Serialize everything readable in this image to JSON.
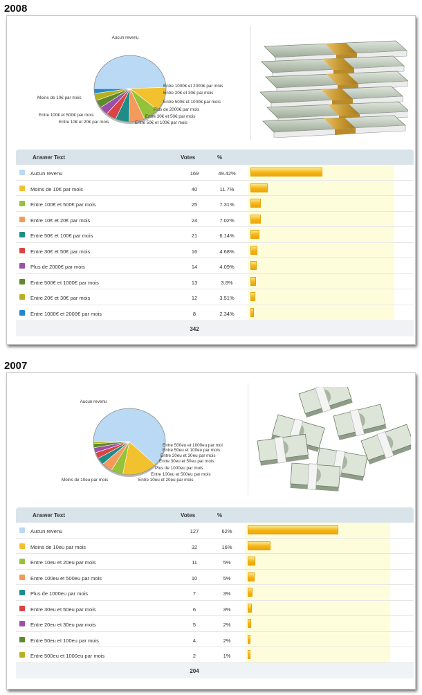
{
  "panels": [
    {
      "year": "2008",
      "columns": {
        "answer": "Answer Text",
        "votes": "Votes",
        "percent": "%"
      },
      "total": "342",
      "rows": [
        {
          "label": "Aucun revenu",
          "votes": "169",
          "percent": "49.42%",
          "color": "#b9d9f5"
        },
        {
          "label": "Moins de 10€ par mois",
          "votes": "40",
          "percent": "11.7%",
          "color": "#f2c12e"
        },
        {
          "label": "Entre 100€ et 500€ par mois",
          "votes": "25",
          "percent": "7.31%",
          "color": "#96c23a"
        },
        {
          "label": "Entre 10€ et 20€ par mois",
          "votes": "24",
          "percent": "7.02%",
          "color": "#f49a5c"
        },
        {
          "label": "Entre 50€ et 100€ par mois",
          "votes": "21",
          "percent": "6.14%",
          "color": "#1e8d8a"
        },
        {
          "label": "Entre 30€ et 50€ par mois",
          "votes": "16",
          "percent": "4.68%",
          "color": "#d94545"
        },
        {
          "label": "Plus de 2000€ par mois",
          "votes": "14",
          "percent": "4.09%",
          "color": "#9c4fa8"
        },
        {
          "label": "Entre 500€ et 1000€ par mois",
          "votes": "13",
          "percent": "3.8%",
          "color": "#5e8a2b"
        },
        {
          "label": "Entre 20€ et 30€ par mois",
          "votes": "12",
          "percent": "3.51%",
          "color": "#b7b022"
        },
        {
          "label": "Entre 1000€ et 2000€ par mois",
          "votes": "8",
          "percent": "2.34%",
          "color": "#2488d1"
        }
      ],
      "pie_labels": [
        "Aucun revenu",
        "Moins de 10€ par mois",
        "Entre 100€ et 500€ par mois",
        "Entre 10€ et 20€ par mois",
        "Entre 1000€ et 2000€ par mois",
        "Entre 20€ et 30€ par mois",
        "Entre 500€ et 1000€ par mois",
        "Plus de 2000€ par mois",
        "Entre 30€ et 50€ par mois",
        "Entre 50€ et 100€ par mois"
      ]
    },
    {
      "year": "2007",
      "columns": {
        "answer": "Answer Text",
        "votes": "Votes",
        "percent": "%"
      },
      "total": "204",
      "rows": [
        {
          "label": "Aucun revenu",
          "votes": "127",
          "percent": "62%",
          "color": "#b9d9f5"
        },
        {
          "label": "Moins de 10eu par mois",
          "votes": "32",
          "percent": "16%",
          "color": "#f2c12e"
        },
        {
          "label": "Entre 10eu et 20eu par mois",
          "votes": "11",
          "percent": "5%",
          "color": "#96c23a"
        },
        {
          "label": "Entre 100eu et 500eu par mois",
          "votes": "10",
          "percent": "5%",
          "color": "#f49a5c"
        },
        {
          "label": "Plus de 1000eu par mois",
          "votes": "7",
          "percent": "3%",
          "color": "#1e8d8a"
        },
        {
          "label": "Entre 30eu et 50eu par mois",
          "votes": "6",
          "percent": "3%",
          "color": "#d94545"
        },
        {
          "label": "Entre 20eu et 30eu par mois",
          "votes": "5",
          "percent": "2%",
          "color": "#9c4fa8"
        },
        {
          "label": "Entre 50eu et 100eu par mois",
          "votes": "4",
          "percent": "2%",
          "color": "#5e8a2b"
        },
        {
          "label": "Entre 500eu et 1000eu par mois",
          "votes": "2",
          "percent": "1%",
          "color": "#b7b022"
        }
      ],
      "pie_labels": [
        "Aucun revenu",
        "Moins de 10eu par mois",
        "Entre 500eu et 1000eu par moi",
        "Entre 50eu et 100eu par mois",
        "Entre 20eu et 30eu par mois",
        "Entre 30eu et 50eu par mois",
        "Plus de 1000eu par mois",
        "Entre 100eu et 500eu par mois",
        "Entre 10eu et 20eu par mois"
      ]
    }
  ],
  "chart_data": [
    {
      "type": "pie",
      "title": "2008",
      "categories": [
        "Aucun revenu",
        "Moins de 10€ par mois",
        "Entre 100€ et 500€ par mois",
        "Entre 10€ et 20€ par mois",
        "Entre 50€ et 100€ par mois",
        "Entre 30€ et 50€ par mois",
        "Plus de 2000€ par mois",
        "Entre 500€ et 1000€ par mois",
        "Entre 20€ et 30€ par mois",
        "Entre 1000€ et 2000€ par mois"
      ],
      "values": [
        169,
        40,
        25,
        24,
        21,
        16,
        14,
        13,
        12,
        8
      ]
    },
    {
      "type": "pie",
      "title": "2007",
      "categories": [
        "Aucun revenu",
        "Moins de 10eu par mois",
        "Entre 10eu et 20eu par mois",
        "Entre 100eu et 500eu par mois",
        "Plus de 1000eu par mois",
        "Entre 30eu et 50eu par mois",
        "Entre 20eu et 30eu par mois",
        "Entre 50eu et 100eu par mois",
        "Entre 500eu et 1000eu par mois"
      ],
      "values": [
        127,
        32,
        11,
        10,
        7,
        6,
        5,
        4,
        2
      ]
    }
  ]
}
